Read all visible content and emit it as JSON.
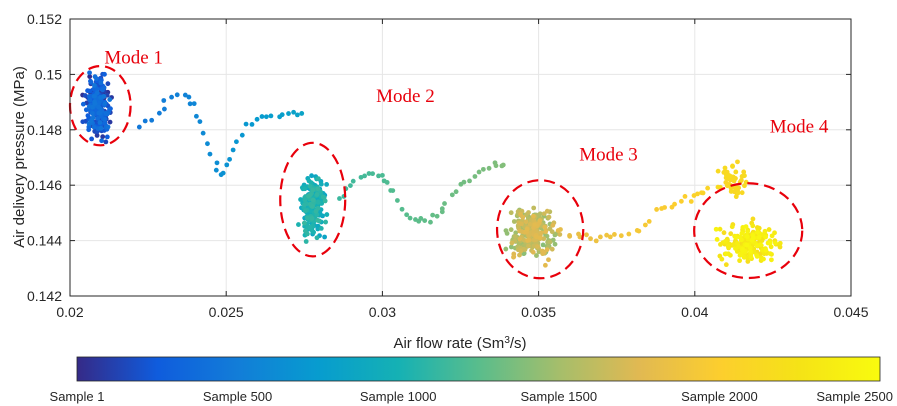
{
  "chart_data": {
    "type": "scatter",
    "xlabel": "Air flow rate (Sm",
    "xlabel_sup": "3",
    "xlabel_tail": "/s)",
    "ylabel": "Air delivery pressure (MPa)",
    "xlim": [
      0.02,
      0.045
    ],
    "ylim": [
      0.142,
      0.152
    ],
    "xticks": [
      "0.02",
      "0.025",
      "0.03",
      "0.035",
      "0.04",
      "0.045"
    ],
    "yticks": [
      "0.142",
      "0.144",
      "0.146",
      "0.148",
      "0.15",
      "0.152"
    ],
    "grid": true,
    "colormap": "parula",
    "colorbar": {
      "orientation": "horizontal",
      "position": "bottom",
      "labels": [
        "Sample 1",
        "Sample 500",
        "Sample 1000",
        "Sample 1500",
        "Sample 2000",
        "Sample 2500"
      ],
      "range": [
        1,
        2500
      ]
    },
    "clusters": [
      {
        "x": 0.0209,
        "y": 0.1488,
        "sx": 0.00025,
        "sy": 0.00065,
        "n": 260,
        "s0": 1,
        "s1": 450
      },
      {
        "x": 0.02775,
        "y": 0.1452,
        "sx": 0.00025,
        "sy": 0.0007,
        "n": 200,
        "s0": 840,
        "s1": 1130
      },
      {
        "x": 0.0348,
        "y": 0.1443,
        "sx": 0.00045,
        "sy": 0.0006,
        "n": 260,
        "s0": 1400,
        "s1": 1780
      },
      {
        "x": 0.0418,
        "y": 0.1439,
        "sx": 0.0006,
        "sy": 0.0004,
        "n": 200,
        "s0": 2150,
        "s1": 2450
      },
      {
        "x": 0.04115,
        "y": 0.1461,
        "sx": 0.0003,
        "sy": 0.0004,
        "n": 50,
        "s0": 2080,
        "s1": 2160
      }
    ],
    "path_segments": [
      {
        "points": [
          [
            0.0222,
            0.1482
          ],
          [
            0.0228,
            0.1485
          ],
          [
            0.0232,
            0.1492
          ],
          [
            0.0238,
            0.1493
          ],
          [
            0.024,
            0.1488
          ],
          [
            0.0243,
            0.1478
          ],
          [
            0.0246,
            0.1468
          ],
          [
            0.0249,
            0.1463
          ],
          [
            0.0252,
            0.1472
          ],
          [
            0.0256,
            0.1481
          ],
          [
            0.026,
            0.1484
          ],
          [
            0.0265,
            0.1485
          ],
          [
            0.027,
            0.1486
          ],
          [
            0.0274,
            0.1486
          ]
        ],
        "n": 38,
        "s0": 460,
        "s1": 830
      },
      {
        "points": [
          [
            0.0286,
            0.1455
          ],
          [
            0.029,
            0.1461
          ],
          [
            0.0296,
            0.1464
          ],
          [
            0.03,
            0.1463
          ],
          [
            0.0303,
            0.1458
          ],
          [
            0.0308,
            0.1449
          ],
          [
            0.0312,
            0.1446
          ],
          [
            0.0316,
            0.1448
          ],
          [
            0.032,
            0.1452
          ],
          [
            0.0325,
            0.146
          ],
          [
            0.033,
            0.1463
          ],
          [
            0.0335,
            0.1467
          ],
          [
            0.0339,
            0.1468
          ]
        ],
        "n": 42,
        "s0": 1140,
        "s1": 1390
      },
      {
        "points": [
          [
            0.0356,
            0.1444
          ],
          [
            0.0362,
            0.1442
          ],
          [
            0.0368,
            0.1441
          ],
          [
            0.0374,
            0.1442
          ],
          [
            0.0382,
            0.1443
          ],
          [
            0.0388,
            0.1451
          ],
          [
            0.0394,
            0.1454
          ],
          [
            0.04,
            0.1456
          ],
          [
            0.0404,
            0.1459
          ]
        ],
        "n": 32,
        "s0": 1790,
        "s1": 2070
      }
    ],
    "annotations": [
      {
        "label": "Mode 1",
        "cx": 0.02097,
        "cy": 0.14887,
        "rx": 0.00097,
        "ry": 0.00143,
        "tx": 0.0211,
        "ty": 0.1504
      },
      {
        "label": "Mode 2",
        "cx": 0.02777,
        "cy": 0.14548,
        "rx": 0.00104,
        "ry": 0.00205,
        "tx": 0.0298,
        "ty": 0.149
      },
      {
        "label": "Mode 3",
        "cx": 0.03505,
        "cy": 0.14441,
        "rx": 0.00138,
        "ry": 0.00177,
        "tx": 0.0363,
        "ty": 0.1469
      },
      {
        "label": "Mode 4",
        "cx": 0.04171,
        "cy": 0.14436,
        "rx": 0.00173,
        "ry": 0.00171,
        "tx": 0.0424,
        "ty": 0.1479
      }
    ]
  }
}
